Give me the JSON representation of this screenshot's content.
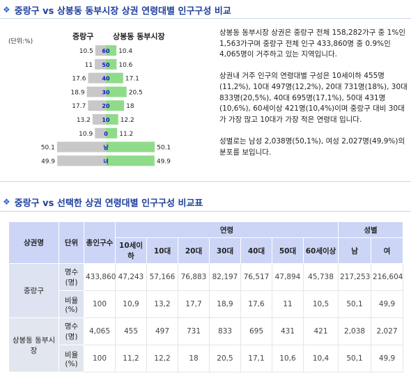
{
  "section1": {
    "title": "중랑구 vs 상봉동 동부시장 상권 연령대별 인구구성 비교"
  },
  "section2": {
    "title": "중랑구 vs 선택한 상권 연령대별 인구구성 비교표"
  },
  "icons": {
    "bullet": "diamond-bullet-icon"
  },
  "colors": {
    "left_bar": "#c8c8c8",
    "right_bar": "#8fdb8a",
    "title": "#1f3f9c",
    "header_bg": "#ccd5f5"
  },
  "chart_data": {
    "type": "bar",
    "unit_note": "(단위:%)",
    "left_label": "중랑구",
    "right_label": "상봉동 동부시장",
    "categories": [
      "60",
      "50",
      "40",
      "30",
      "20",
      "10",
      "0",
      "남",
      "녀"
    ],
    "series": [
      {
        "name": "중랑구",
        "values": [
          10.5,
          11,
          17.6,
          18.9,
          17.7,
          13.2,
          10.9,
          50.1,
          49.9
        ]
      },
      {
        "name": "상봉동 동부시장",
        "values": [
          10.4,
          10.6,
          17.1,
          20.5,
          18,
          12.2,
          11.2,
          50.1,
          49.9
        ]
      }
    ],
    "left_labels": [
      "10.5",
      "11",
      "17.6",
      "18.9",
      "17.7",
      "13.2",
      "10.9",
      "50.1",
      "49.9"
    ],
    "right_labels": [
      "10.4",
      "10.6",
      "17.1",
      "20.5",
      "18",
      "12.2",
      "11.2",
      "50.1",
      "49.9"
    ]
  },
  "description": {
    "p1": "상봉동 동부시장 상권은 중랑구 전체 158,282가구 중 1%인 1,563가구며 중랑구 전체 인구 433,860명 중 0.9%인 4,065명이 거주하고 있는 지역입니다.",
    "p2": "상권내 거주 인구의 연령대별 구성은 10세이하 455명(11,2%), 10대 497명(12,2%), 20대 731명(18%), 30대 833명(20,5%), 40대 695명(17,1%), 50대 431명(10,6%), 60세이상 421명(10,4%)이며 중랑구 대비 30대가 가장 많고 10대가 가장 적은 연령대 입니다.",
    "p3": "성별로는 남성 2,038명(50,1%), 여성 2,027명(49,9%)의 분포를 보입니다."
  },
  "table": {
    "headers": {
      "area": "상권명",
      "unit": "단위",
      "total": "총인구수",
      "age_group": "연령",
      "gender_group": "성별",
      "ages": [
        "10세이하",
        "10대",
        "20대",
        "30대",
        "40대",
        "50대",
        "60세이상"
      ],
      "genders": [
        "남",
        "여"
      ]
    },
    "rows": [
      {
        "name": "중랑구",
        "count_label": "명수(명)",
        "ratio_label": "비율(%)",
        "count": [
          "433,860",
          "47,243",
          "57,166",
          "76,883",
          "82,197",
          "76,517",
          "47,894",
          "45,738",
          "217,253",
          "216,604"
        ],
        "ratio": [
          "100",
          "10,9",
          "13,2",
          "17,7",
          "18,9",
          "17,6",
          "11",
          "10,5",
          "50,1",
          "49,9"
        ]
      },
      {
        "name": "상봉동 동부시장",
        "count_label": "명수(명)",
        "ratio_label": "비율(%)",
        "count": [
          "4,065",
          "455",
          "497",
          "731",
          "833",
          "695",
          "431",
          "421",
          "2,038",
          "2,027"
        ],
        "ratio": [
          "100",
          "11,2",
          "12,2",
          "18",
          "20,5",
          "17,1",
          "10,6",
          "10,4",
          "50,1",
          "49,9"
        ]
      }
    ]
  }
}
